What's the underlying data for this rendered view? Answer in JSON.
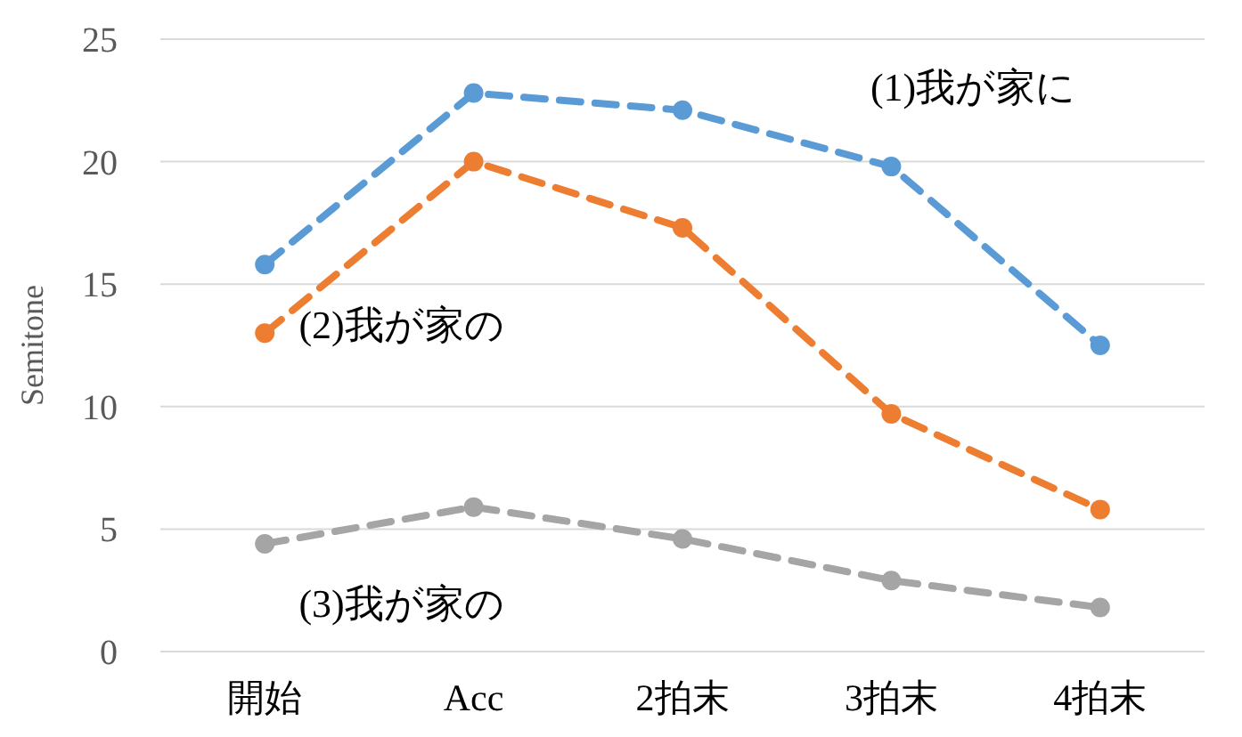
{
  "chart_data": {
    "type": "line",
    "ylabel": "Semitone",
    "categories": [
      "開始",
      "Acc",
      "2拍末",
      "3拍末",
      "4拍末"
    ],
    "series": [
      {
        "name": "(1)我が家に",
        "color": "#5b9bd5",
        "values": [
          15.8,
          22.8,
          22.1,
          19.8,
          12.5
        ]
      },
      {
        "name": "(2)我が家の",
        "color": "#ed7d31",
        "values": [
          13.0,
          20.0,
          17.3,
          9.7,
          5.8
        ]
      },
      {
        "name": "(3)我が家の",
        "color": "#a5a5a5",
        "values": [
          4.4,
          5.9,
          4.6,
          2.9,
          1.8
        ]
      }
    ],
    "ylim": [
      0,
      25
    ],
    "yticks": [
      0,
      5,
      10,
      15,
      20,
      25
    ],
    "grid": "y",
    "legend": false,
    "marker": "circle",
    "line_style": "dashed"
  }
}
